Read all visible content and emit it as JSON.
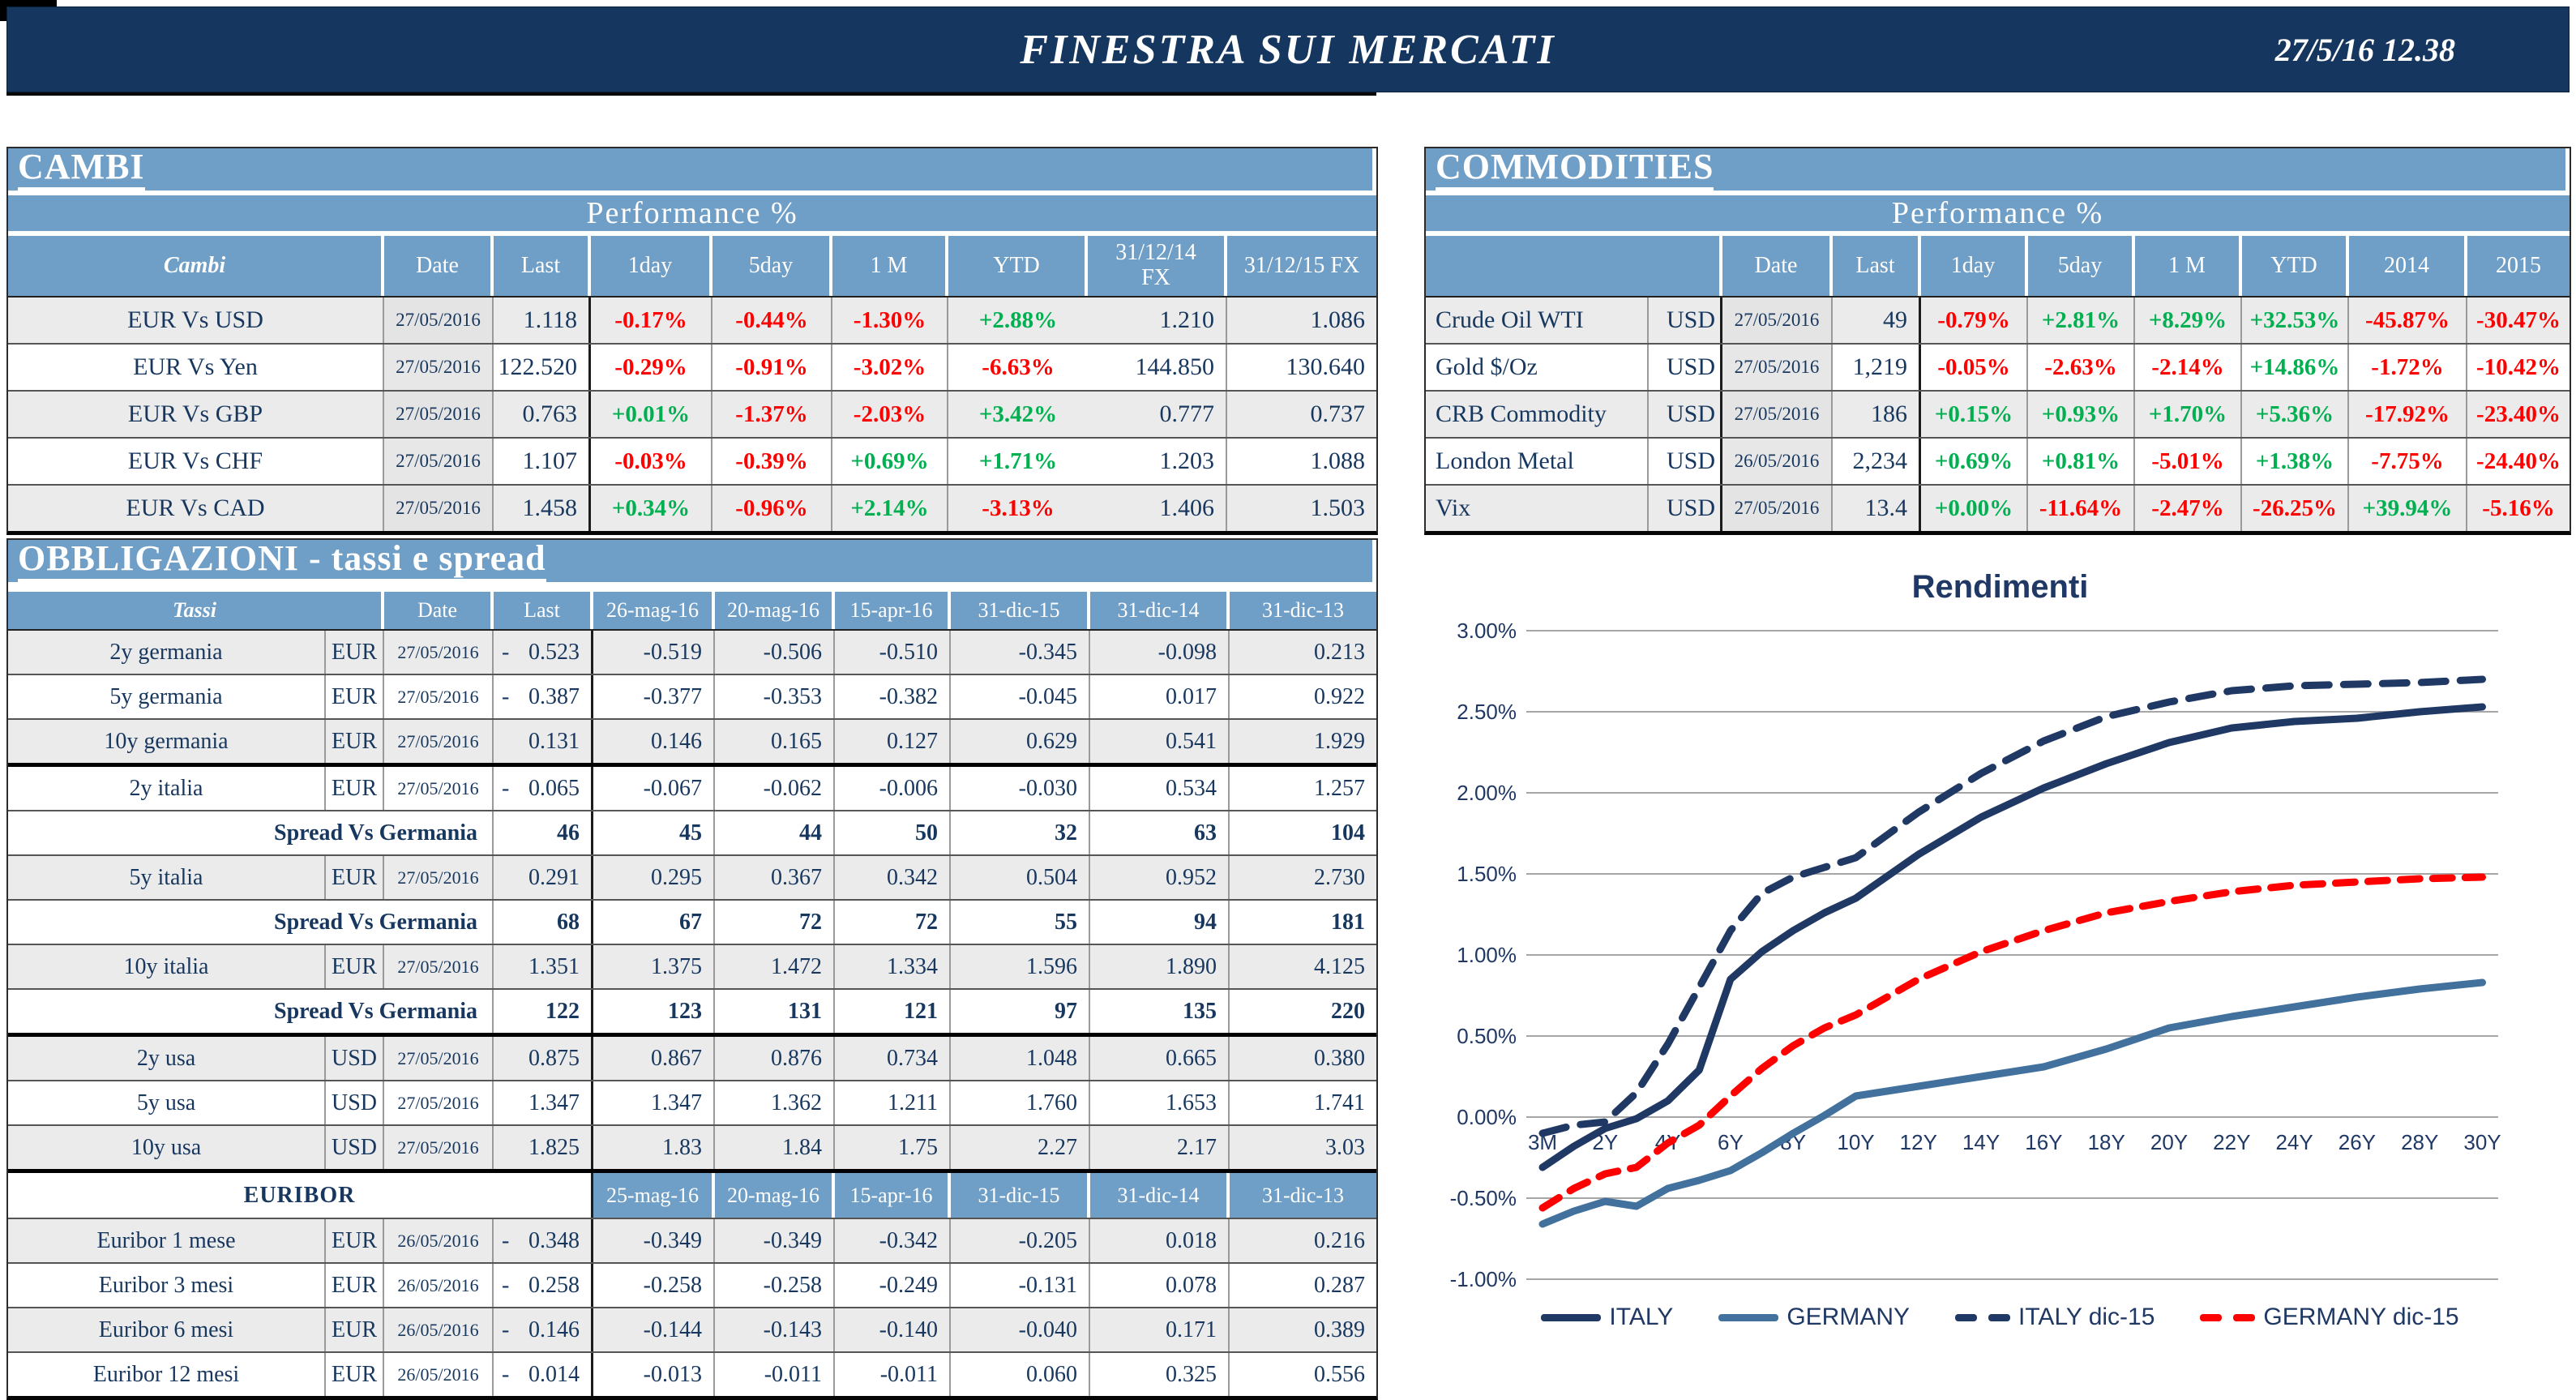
{
  "header": {
    "title": "FINESTRA SUI MERCATI",
    "datetime": "27/5/16 12.38"
  },
  "colors": {
    "bar_navy": "#14365F",
    "header_blue": "#6F9EC6",
    "positive": "#00B050",
    "negative": "#FF0000",
    "text_navy": "#17375E"
  },
  "cambi": {
    "section_title": "CAMBI",
    "perf_title": "Performance %",
    "columns": [
      "Cambi",
      "Date",
      "Last",
      "1day",
      "5day",
      "1 M",
      "YTD",
      "31/12/14 FX",
      "31/12/15  FX"
    ],
    "rows": [
      {
        "name": "EUR Vs USD",
        "date": "27/05/2016",
        "last": "1.118",
        "perf": [
          "-0.17%",
          "-0.44%",
          "-1.30%",
          "+2.88%"
        ],
        "fx14": "1.210",
        "fx15": "1.086",
        "shade": true
      },
      {
        "name": "EUR Vs Yen",
        "date": "27/05/2016",
        "last": "122.520",
        "perf": [
          "-0.29%",
          "-0.91%",
          "-3.02%",
          "-6.63%"
        ],
        "fx14": "144.850",
        "fx15": "130.640",
        "shade": false
      },
      {
        "name": "EUR Vs GBP",
        "date": "27/05/2016",
        "last": "0.763",
        "perf": [
          "+0.01%",
          "-1.37%",
          "-2.03%",
          "+3.42%"
        ],
        "fx14": "0.777",
        "fx15": "0.737",
        "shade": true
      },
      {
        "name": "EUR Vs CHF",
        "date": "27/05/2016",
        "last": "1.107",
        "perf": [
          "-0.03%",
          "-0.39%",
          "+0.69%",
          "+1.71%"
        ],
        "fx14": "1.203",
        "fx15": "1.088",
        "shade": false
      },
      {
        "name": "EUR Vs CAD",
        "date": "27/05/2016",
        "last": "1.458",
        "perf": [
          "+0.34%",
          "-0.96%",
          "+2.14%",
          "-3.13%"
        ],
        "fx14": "1.406",
        "fx15": "1.503",
        "shade": true
      }
    ]
  },
  "commodities": {
    "section_title": "COMMODITIES",
    "perf_title": "Performance %",
    "columns": [
      "",
      "Date",
      "Last",
      "1day",
      "5day",
      "1 M",
      "YTD",
      "2014",
      "2015"
    ],
    "rows": [
      {
        "name": "Crude Oil WTI",
        "ccy": "USD",
        "date": "27/05/2016",
        "last": "49",
        "perf": [
          "-0.79%",
          "+2.81%",
          "+8.29%",
          "+32.53%",
          "-45.87%",
          "-30.47%"
        ],
        "shade": true
      },
      {
        "name": "Gold $/Oz",
        "ccy": "USD",
        "date": "27/05/2016",
        "last": "1,219",
        "perf": [
          "-0.05%",
          "-2.63%",
          "-2.14%",
          "+14.86%",
          "-1.72%",
          "-10.42%"
        ],
        "shade": false
      },
      {
        "name": "CRB Commodity",
        "ccy": "USD",
        "date": "27/05/2016",
        "last": "186",
        "perf": [
          "+0.15%",
          "+0.93%",
          "+1.70%",
          "+5.36%",
          "-17.92%",
          "-23.40%"
        ],
        "shade": true
      },
      {
        "name": "London Metal",
        "ccy": "USD",
        "date": "26/05/2016",
        "last": "2,234",
        "perf": [
          "+0.69%",
          "+0.81%",
          "-5.01%",
          "+1.38%",
          "-7.75%",
          "-24.40%"
        ],
        "shade": false
      },
      {
        "name": "Vix",
        "ccy": "USD",
        "date": "27/05/2016",
        "last": "13.4",
        "perf": [
          "+0.00%",
          "-11.64%",
          "-2.47%",
          "-26.25%",
          "+39.94%",
          "-5.16%"
        ],
        "shade": true
      }
    ]
  },
  "bonds": {
    "section_title": "OBBLIGAZIONI - tassi e spread",
    "columns": [
      "Tassi",
      "Date",
      "Last",
      "26-mag-16",
      "20-mag-16",
      "15-apr-16",
      "31-dic-15",
      "31-dic-14",
      "31-dic-13"
    ],
    "rows": [
      {
        "type": "data",
        "name": "2y germania",
        "ccy": "EUR",
        "date": "27/05/2016",
        "last_sign": "-",
        "last": "0.523",
        "vals": [
          "-0.519",
          "-0.506",
          "-0.510",
          "-0.345",
          "-0.098",
          "0.213"
        ],
        "shade": true
      },
      {
        "type": "data",
        "name": "5y germania",
        "ccy": "EUR",
        "date": "27/05/2016",
        "last_sign": "-",
        "last": "0.387",
        "vals": [
          "-0.377",
          "-0.353",
          "-0.382",
          "-0.045",
          "0.017",
          "0.922"
        ],
        "shade": false
      },
      {
        "type": "data",
        "name": "10y germania",
        "ccy": "EUR",
        "date": "27/05/2016",
        "last_sign": "",
        "last": "0.131",
        "vals": [
          "0.146",
          "0.165",
          "0.127",
          "0.629",
          "0.541",
          "1.929"
        ],
        "shade": true,
        "hb": true
      },
      {
        "type": "data",
        "name": "2y italia",
        "ccy": "EUR",
        "date": "27/05/2016",
        "last_sign": "-",
        "last": "0.065",
        "vals": [
          "-0.067",
          "-0.062",
          "-0.006",
          "-0.030",
          "0.534",
          "1.257"
        ],
        "shade": false
      },
      {
        "type": "spread",
        "label": "Spread Vs Germania",
        "last": "46",
        "vals": [
          "45",
          "44",
          "50",
          "32",
          "63",
          "104"
        ],
        "shade": false
      },
      {
        "type": "data",
        "name": "5y italia",
        "ccy": "EUR",
        "date": "27/05/2016",
        "last_sign": "",
        "last": "0.291",
        "vals": [
          "0.295",
          "0.367",
          "0.342",
          "0.504",
          "0.952",
          "2.730"
        ],
        "shade": true
      },
      {
        "type": "spread",
        "label": "Spread Vs Germania",
        "last": "68",
        "vals": [
          "67",
          "72",
          "72",
          "55",
          "94",
          "181"
        ],
        "shade": false
      },
      {
        "type": "data",
        "name": "10y italia",
        "ccy": "EUR",
        "date": "27/05/2016",
        "last_sign": "",
        "last": "1.351",
        "vals": [
          "1.375",
          "1.472",
          "1.334",
          "1.596",
          "1.890",
          "4.125"
        ],
        "shade": true
      },
      {
        "type": "spread",
        "label": "Spread Vs Germania",
        "last": "122",
        "vals": [
          "123",
          "131",
          "121",
          "97",
          "135",
          "220"
        ],
        "shade": false,
        "hb": true
      },
      {
        "type": "data",
        "name": "2y usa",
        "ccy": "USD",
        "date": "27/05/2016",
        "last_sign": "",
        "last": "0.875",
        "vals": [
          "0.867",
          "0.876",
          "0.734",
          "1.048",
          "0.665",
          "0.380"
        ],
        "shade": true
      },
      {
        "type": "data",
        "name": "5y usa",
        "ccy": "USD",
        "date": "27/05/2016",
        "last_sign": "",
        "last": "1.347",
        "vals": [
          "1.347",
          "1.362",
          "1.211",
          "1.760",
          "1.653",
          "1.741"
        ],
        "shade": false
      },
      {
        "type": "data",
        "name": "10y usa",
        "ccy": "USD",
        "date": "27/05/2016",
        "last_sign": "",
        "last": "1.825",
        "vals": [
          "1.83",
          "1.84",
          "1.75",
          "2.27",
          "2.17",
          "3.03"
        ],
        "shade": true,
        "hb": true
      },
      {
        "type": "subheader",
        "label": "EURIBOR",
        "cols": [
          "25-mag-16",
          "20-mag-16",
          "15-apr-16",
          "31-dic-15",
          "31-dic-14",
          "31-dic-13"
        ],
        "shade": false
      },
      {
        "type": "data",
        "name": "Euribor 1 mese",
        "ccy": "EUR",
        "date": "26/05/2016",
        "last_sign": "-",
        "last": "0.348",
        "vals": [
          "-0.349",
          "-0.349",
          "-0.342",
          "-0.205",
          "0.018",
          "0.216"
        ],
        "shade": true
      },
      {
        "type": "data",
        "name": "Euribor 3 mesi",
        "ccy": "EUR",
        "date": "26/05/2016",
        "last_sign": "-",
        "last": "0.258",
        "vals": [
          "-0.258",
          "-0.258",
          "-0.249",
          "-0.131",
          "0.078",
          "0.287"
        ],
        "shade": false
      },
      {
        "type": "data",
        "name": "Euribor 6 mesi",
        "ccy": "EUR",
        "date": "26/05/2016",
        "last_sign": "-",
        "last": "0.146",
        "vals": [
          "-0.144",
          "-0.143",
          "-0.140",
          "-0.040",
          "0.171",
          "0.389"
        ],
        "shade": true
      },
      {
        "type": "data",
        "name": "Euribor 12 mesi",
        "ccy": "EUR",
        "date": "26/05/2016",
        "last_sign": "-",
        "last": "0.014",
        "vals": [
          "-0.013",
          "-0.011",
          "-0.011",
          "0.060",
          "0.325",
          "0.556"
        ],
        "shade": false
      }
    ]
  },
  "chart_data": {
    "type": "line",
    "title": "Rendimenti",
    "x_tick_labels": [
      "3M",
      "2Y",
      "4Y",
      "6Y",
      "8Y",
      "10Y",
      "12Y",
      "14Y",
      "16Y",
      "18Y",
      "20Y",
      "22Y",
      "24Y",
      "26Y",
      "28Y",
      "30Y"
    ],
    "ylim": [
      -1.0,
      3.0
    ],
    "ytick_step": 0.5,
    "grid": true,
    "legend_position": "bottom",
    "x_years": [
      0.25,
      1,
      2,
      3,
      4,
      5,
      6,
      7,
      8,
      9,
      10,
      12,
      14,
      16,
      18,
      20,
      22,
      24,
      26,
      28,
      30
    ],
    "series": [
      {
        "name": "ITALY",
        "color": "#1F3864",
        "dash": false,
        "values": [
          -0.31,
          -0.18,
          -0.07,
          -0.01,
          0.1,
          0.29,
          0.85,
          1.02,
          1.15,
          1.26,
          1.35,
          1.62,
          1.85,
          2.03,
          2.18,
          2.31,
          2.4,
          2.44,
          2.46,
          2.5,
          2.53
        ]
      },
      {
        "name": "GERMANY",
        "color": "#41719C",
        "dash": false,
        "values": [
          -0.66,
          -0.58,
          -0.52,
          -0.55,
          -0.44,
          -0.39,
          -0.33,
          -0.22,
          -0.1,
          0.01,
          0.13,
          0.19,
          0.25,
          0.31,
          0.42,
          0.55,
          0.62,
          0.68,
          0.74,
          0.79,
          0.83
        ]
      },
      {
        "name": "ITALY dic-15",
        "color": "#1F3864",
        "dash": true,
        "values": [
          -0.1,
          -0.05,
          -0.03,
          0.15,
          0.45,
          0.8,
          1.15,
          1.38,
          1.48,
          1.54,
          1.6,
          1.88,
          2.12,
          2.32,
          2.47,
          2.56,
          2.63,
          2.66,
          2.67,
          2.68,
          2.7
        ]
      },
      {
        "name": "GERMANY dic-15",
        "color": "#FF0000",
        "dash": true,
        "values": [
          -0.56,
          -0.44,
          -0.35,
          -0.31,
          -0.16,
          -0.05,
          0.13,
          0.3,
          0.44,
          0.55,
          0.63,
          0.85,
          1.02,
          1.15,
          1.26,
          1.33,
          1.39,
          1.43,
          1.45,
          1.47,
          1.48
        ]
      }
    ]
  }
}
